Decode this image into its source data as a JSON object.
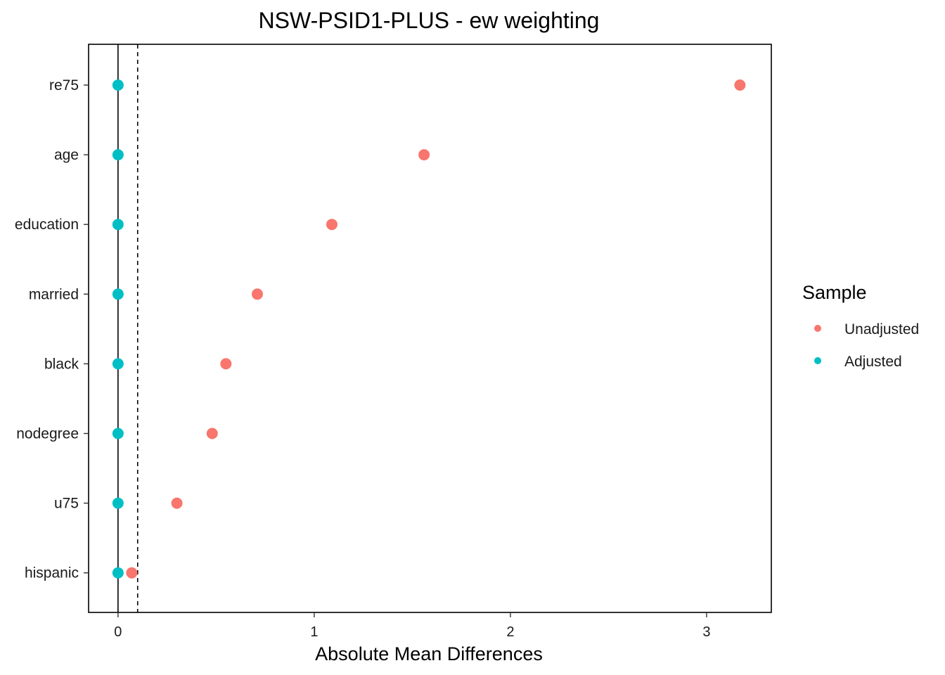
{
  "chart_data": {
    "type": "scatter",
    "title": "NSW-PSID1-PLUS - ew weighting",
    "xlabel": "Absolute Mean Differences",
    "ylabel": "",
    "xlim": [
      -0.15,
      3.33
    ],
    "xticks": [
      0,
      1,
      2,
      3
    ],
    "categories": [
      "re75",
      "age",
      "education",
      "married",
      "black",
      "nodegree",
      "u75",
      "hispanic"
    ],
    "threshold_line": 0.1,
    "reference_line": 0,
    "grid": false,
    "legend": {
      "title": "Sample",
      "position": "right"
    },
    "series": [
      {
        "name": "Unadjusted",
        "color": "#F8766D",
        "values": [
          3.17,
          1.56,
          1.09,
          0.71,
          0.55,
          0.48,
          0.3,
          0.07
        ]
      },
      {
        "name": "Adjusted",
        "color": "#00BFC4",
        "values": [
          0.0,
          0.0,
          0.0,
          0.0,
          0.0,
          0.0,
          0.0,
          0.0
        ]
      }
    ]
  }
}
